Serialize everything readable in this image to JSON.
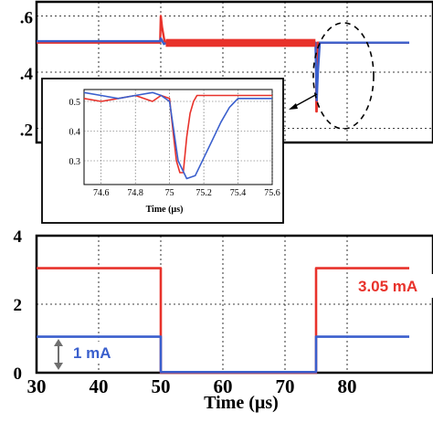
{
  "chart_data": [
    {
      "type": "line",
      "id": "top",
      "xlim": [
        30,
        90
      ],
      "ylim": [
        0.15,
        0.65
      ],
      "yticks": [
        0.2,
        0.4,
        0.6
      ],
      "ytick_labels": [
        ".2",
        ".4",
        ".6"
      ],
      "grid": true,
      "series": [
        {
          "color": "#e8322b",
          "x": [
            30,
            49.9,
            50,
            50.2,
            50.6,
            51,
            74.9,
            75.0,
            75.05,
            75.1,
            75.2,
            75.4,
            90
          ],
          "y": [
            0.505,
            0.505,
            0.6,
            0.56,
            0.51,
            0.505,
            0.505,
            0.48,
            0.26,
            0.26,
            0.505,
            0.505,
            0.505
          ]
        },
        {
          "color": "#3a5fcd",
          "x": [
            30,
            49.9,
            50,
            50.5,
            51,
            74.9,
            75.1,
            75.3,
            75.6,
            90
          ],
          "y": [
            0.51,
            0.51,
            0.52,
            0.5,
            0.505,
            0.505,
            0.3,
            0.4,
            0.505,
            0.505
          ]
        }
      ],
      "annotations": {
        "dashed_ellipse_around_x": 75
      }
    },
    {
      "type": "line",
      "id": "inset",
      "xlim": [
        74.5,
        75.6
      ],
      "ylim": [
        0.22,
        0.54
      ],
      "xticks": [
        74.6,
        74.8,
        75,
        75.2,
        75.4,
        75.6
      ],
      "xtick_labels": [
        "74.6",
        "74.8",
        "75",
        "75.2",
        "75.4",
        "75.6"
      ],
      "yticks": [
        0.3,
        0.4,
        0.5
      ],
      "ytick_labels": [
        "0.3",
        "0.4",
        "0.5"
      ],
      "xlabel": "Time (µs)",
      "grid": true,
      "series": [
        {
          "color": "#e8322b",
          "x": [
            74.5,
            74.6,
            74.7,
            74.8,
            74.9,
            74.95,
            75.0,
            75.02,
            75.04,
            75.06,
            75.08,
            75.1,
            75.12,
            75.14,
            75.16,
            75.6
          ],
          "y": [
            0.51,
            0.5,
            0.51,
            0.52,
            0.5,
            0.52,
            0.51,
            0.4,
            0.3,
            0.26,
            0.26,
            0.38,
            0.46,
            0.5,
            0.52,
            0.52
          ]
        },
        {
          "color": "#3a5fcd",
          "x": [
            74.5,
            74.6,
            74.7,
            74.8,
            74.9,
            74.95,
            75.0,
            75.05,
            75.1,
            75.15,
            75.2,
            75.25,
            75.3,
            75.35,
            75.4,
            75.5,
            75.6
          ],
          "y": [
            0.53,
            0.52,
            0.51,
            0.52,
            0.53,
            0.52,
            0.5,
            0.3,
            0.24,
            0.25,
            0.31,
            0.37,
            0.43,
            0.48,
            0.51,
            0.51,
            0.51
          ]
        }
      ]
    },
    {
      "type": "line",
      "id": "bottom",
      "xlim": [
        30,
        90
      ],
      "ylim": [
        0,
        4
      ],
      "xticks": [
        30,
        40,
        50,
        60,
        70,
        80
      ],
      "xtick_labels": [
        "30",
        "40",
        "50",
        "60",
        "70",
        "80"
      ],
      "yticks": [
        0,
        2,
        4
      ],
      "ytick_labels": [
        "0",
        "2",
        "4"
      ],
      "xlabel": "Time (µs)",
      "grid": true,
      "series": [
        {
          "color": "#e8322b",
          "x": [
            30,
            50,
            50,
            75,
            75,
            90
          ],
          "y": [
            3.05,
            3.05,
            0,
            0,
            3.05,
            3.05
          ]
        },
        {
          "color": "#3a5fcd",
          "x": [
            30,
            50,
            50,
            75,
            75,
            90
          ],
          "y": [
            1.05,
            1.05,
            0.02,
            0.02,
            1.05,
            1.05
          ]
        }
      ],
      "annotations": [
        {
          "text": "3.05 mA",
          "color": "#e8322b"
        },
        {
          "text": "1 mA",
          "color": "#3a5fcd"
        }
      ]
    }
  ]
}
